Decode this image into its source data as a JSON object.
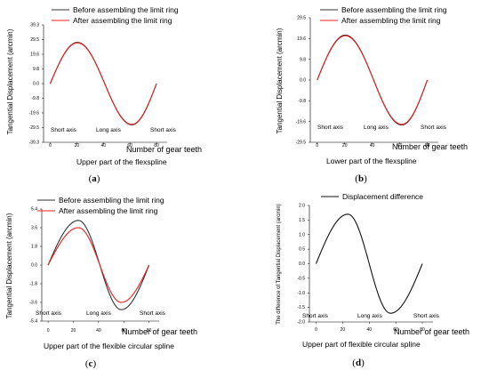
{
  "figure": {
    "panels": [
      {
        "label_open": "(",
        "label_letter": "a",
        "label_close": ")",
        "subtitle": "Upper part of the flexspline",
        "xlabel": "Number of gear teeth",
        "ylabel": "Tangential Displacement (arcmin)",
        "xticks": [
          "0",
          "20",
          "40",
          "60",
          "80"
        ],
        "yticks": [
          "39.3",
          "29.5",
          "19.6",
          "9.8",
          "0.0",
          "-9.8",
          "-19.6",
          "-29.5",
          "-39.3"
        ],
        "annotations": {
          "left": "Short axis",
          "middle": "Long axis",
          "right": "Short axis"
        },
        "legend": [
          "Before assembling the limit ring",
          "After assembling the limit ring"
        ]
      },
      {
        "label_open": "(",
        "label_letter": "b",
        "label_close": ")",
        "subtitle": "Lower part of the flexspline",
        "xlabel": "Number of gear teeth",
        "ylabel": "Tangential Displacement (arcmin)",
        "xticks": [
          "0",
          "20",
          "40",
          "60",
          "80"
        ],
        "yticks": [
          "29.5",
          "19.6",
          "9.8",
          "0.0",
          "-9.8",
          "-19.6",
          "-29.5"
        ],
        "annotations": {
          "left": "Short axis",
          "middle": "Long axis",
          "right": "Short axis"
        },
        "legend": [
          "Before assembling the limit ring",
          "After assembling the limit ring"
        ]
      },
      {
        "label_open": "(",
        "label_letter": "c",
        "label_close": ")",
        "subtitle": "Upper part of the flexible circular spline",
        "xlabel": "Number of gear teeth",
        "ylabel": "Tangential Displacement (arcmin)",
        "xticks": [
          "0",
          "20",
          "40",
          "60",
          "80"
        ],
        "yticks": [
          "5.4",
          "3.6",
          "1.8",
          "0.0",
          "-1.8",
          "-3.6",
          "-5.4"
        ],
        "annotations": {
          "left": "Short axis",
          "middle": "Long axis",
          "right": "Short axis"
        },
        "legend": [
          "Before assembling the limit ring",
          "After assembling the limit ring"
        ]
      },
      {
        "label_open": "(",
        "label_letter": "d",
        "label_close": ")",
        "subtitle": "Upper part of flexible circular spline",
        "xlabel": "Number of gear teeth",
        "ylabel": "The difference of Tangential Displacement (arcmin)",
        "xticks": [
          "0",
          "20",
          "40",
          "60",
          "80"
        ],
        "yticks": [
          "2.0",
          "1.5",
          "1.0",
          "0.5",
          "0.0",
          "-0.5",
          "-1.0",
          "-1.5",
          "-2.0"
        ],
        "annotations": {
          "left": "Short axis",
          "middle": "Long axis",
          "right": "Short axis"
        },
        "legend": [
          "Displacement difference"
        ]
      }
    ]
  },
  "chart_data": [
    {
      "type": "line",
      "x": [
        0,
        20,
        40,
        60,
        80
      ],
      "xlim": [
        -5,
        88
      ],
      "ylim": [
        -39.3,
        39.3
      ],
      "series": [
        {
          "name": "Before assembling the limit ring",
          "color": "#333333",
          "amplitude": 27.6,
          "x_peak": 20.5,
          "x_trough": 61.5,
          "start_end_y": 0.0
        },
        {
          "name": "After assembling the limit ring",
          "color": "#e8201c",
          "amplitude": 27.3,
          "x_peak": 20.5,
          "x_trough": 61.5,
          "start_end_y": 0.0
        }
      ]
    },
    {
      "type": "line",
      "x": [
        0,
        20,
        40,
        60,
        80
      ],
      "xlim": [
        -5,
        88
      ],
      "ylim": [
        -29.5,
        29.5
      ],
      "series": [
        {
          "name": "Before assembling the limit ring",
          "color": "#333333",
          "amplitude": 21.3,
          "x_peak": 20.5,
          "x_trough": 61.5,
          "start_end_y": 0.0
        },
        {
          "name": "After assembling the limit ring",
          "color": "#e8201c",
          "amplitude": 21.0,
          "x_peak": 20.5,
          "x_trough": 61.5,
          "start_end_y": 0.0
        }
      ]
    },
    {
      "type": "line",
      "x": [
        0,
        20,
        40,
        60,
        80
      ],
      "xlim": [
        -5,
        88
      ],
      "ylim": [
        -5.4,
        5.4
      ],
      "series": [
        {
          "name": "Before assembling the limit ring",
          "color": "#333333",
          "amplitude": 4.3,
          "x_peak": 24.0,
          "x_trough": 58.0,
          "start_end_y": 0.0
        },
        {
          "name": "After assembling the limit ring",
          "color": "#e8201c",
          "amplitude": 3.6,
          "x_peak": 24.0,
          "x_trough": 58.0,
          "start_end_y": 0.0
        }
      ]
    },
    {
      "type": "line",
      "x": [
        0,
        20,
        40,
        60,
        80
      ],
      "xlim": [
        -5,
        88
      ],
      "ylim": [
        -2.0,
        2.0
      ],
      "series": [
        {
          "name": "Displacement difference",
          "color": "#111111",
          "amplitude": 1.7,
          "x_peak": 24.0,
          "x_trough": 56.0,
          "start_end_y": 0.0
        }
      ]
    }
  ]
}
